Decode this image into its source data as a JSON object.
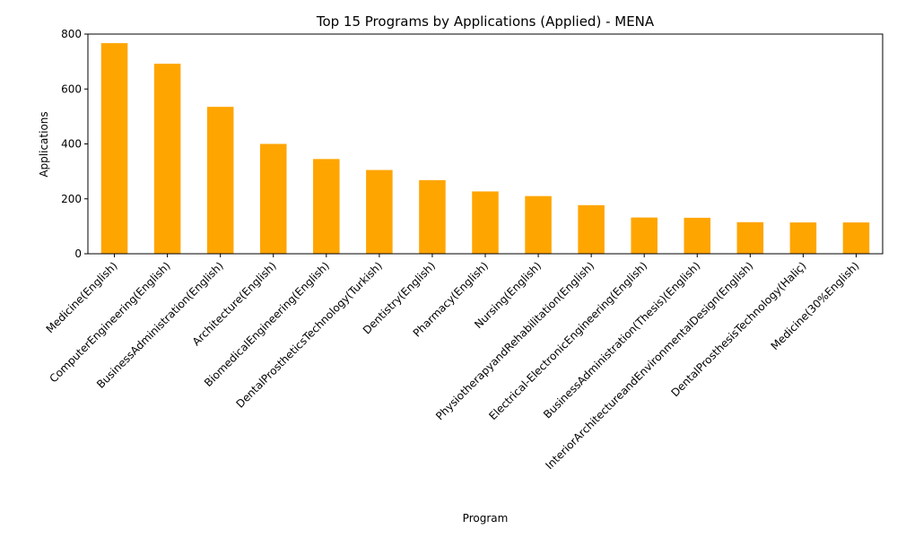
{
  "chart_data": {
    "type": "bar",
    "title": "Top 15 Programs by Applications (Applied) - MENA",
    "xlabel": "Program",
    "ylabel": "Applications",
    "ylim": [
      0,
      800
    ],
    "yticks": [
      0,
      200,
      400,
      600,
      800
    ],
    "grid": false,
    "legend": "none",
    "bar_color": "#FFA500",
    "categories": [
      "Medicine(English)",
      "ComputerEngineering(English)",
      "BusinessAdministration(English)",
      "Architecture(English)",
      "BiomedicalEngineering(English)",
      "DentalProstheticsTechnology(Turkish)",
      "Dentistry(English)",
      "Pharmacy(English)",
      "Nursing(English)",
      "PhysiotherapyandRehabilitation(English)",
      "Electrical-ElectronicEngineering(English)",
      "BusinessAdministration(Thesis)(English)",
      "InteriorArchitectureandEnvironmentalDesign(English)",
      "DentalProsthesisTechnology(Haliç)",
      "Medicine(30%English)"
    ],
    "values": [
      767,
      692,
      535,
      400,
      345,
      305,
      268,
      227,
      210,
      177,
      132,
      131,
      115,
      114,
      114
    ]
  }
}
